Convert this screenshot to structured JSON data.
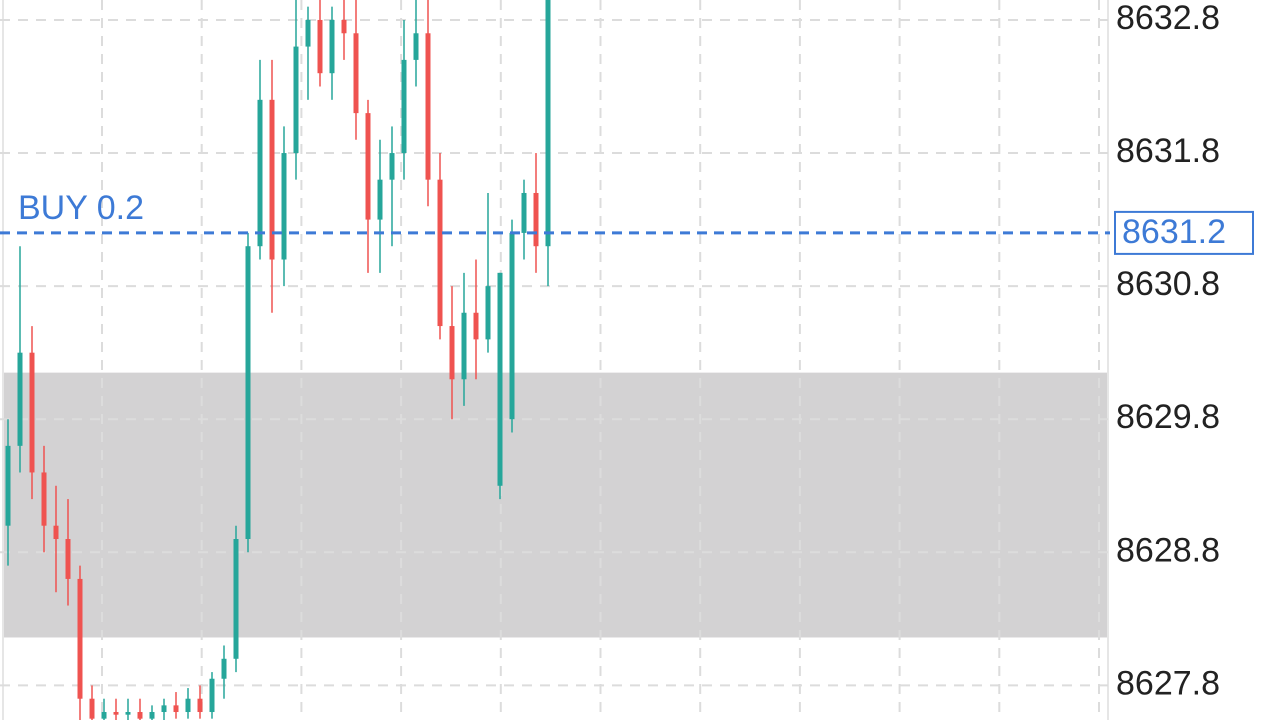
{
  "chart_data": {
    "type": "candlestick",
    "ylim": [
      8627.54,
      8632.95
    ],
    "yticks": [
      8627.8,
      8628.8,
      8629.8,
      8630.8,
      8631.8,
      8632.8
    ],
    "grid": true,
    "up_color": "#26a69a",
    "down_color": "#ef5350",
    "open": [
      8629.0,
      8629.6,
      8630.3,
      8629.4,
      8629.0,
      8628.9,
      8628.6,
      8627.7,
      8627.55,
      8627.6,
      8627.58,
      8627.6,
      8627.55,
      8627.6,
      8627.65,
      8627.6,
      8627.7,
      8627.6,
      8627.85,
      8628.0,
      8628.9,
      8631.1,
      8632.2,
      8631.0,
      8631.8,
      8632.6,
      8632.8,
      8632.4,
      8632.8,
      8632.7,
      8632.1,
      8631.3,
      8631.6,
      8631.8,
      8632.5,
      8632.7,
      8631.6,
      8630.5,
      8630.1,
      8630.6,
      8630.4,
      8629.3,
      8629.8,
      8631.2,
      8631.5,
      8631.1
    ],
    "high": [
      8629.8,
      8631.1,
      8630.5,
      8629.6,
      8629.3,
      8629.2,
      8628.7,
      8627.8,
      8627.7,
      8627.7,
      8627.7,
      8627.7,
      8627.65,
      8627.7,
      8627.75,
      8627.78,
      8627.8,
      8627.9,
      8628.1,
      8629.0,
      8631.2,
      8632.5,
      8632.5,
      8632.0,
      8632.95,
      8632.9,
      8632.95,
      8632.9,
      8632.95,
      8632.95,
      8632.2,
      8631.9,
      8632.0,
      8632.8,
      8632.95,
      8632.95,
      8631.8,
      8630.8,
      8630.9,
      8631.0,
      8631.5,
      8630.9,
      8631.3,
      8631.6,
      8631.8,
      8632.95
    ],
    "low": [
      8628.7,
      8629.4,
      8629.2,
      8628.8,
      8628.5,
      8628.4,
      8627.5,
      8627.5,
      8627.5,
      8627.5,
      8627.5,
      8627.52,
      8627.5,
      8627.52,
      8627.55,
      8627.55,
      8627.55,
      8627.55,
      8627.7,
      8627.9,
      8628.8,
      8631.0,
      8630.6,
      8630.8,
      8631.6,
      8632.2,
      8632.3,
      8632.2,
      8632.5,
      8631.9,
      8630.9,
      8630.9,
      8631.1,
      8631.6,
      8632.3,
      8631.4,
      8630.4,
      8629.8,
      8629.9,
      8630.1,
      8630.3,
      8629.2,
      8629.7,
      8631.0,
      8630.9,
      8630.8
    ],
    "close": [
      8629.6,
      8630.3,
      8629.4,
      8629.0,
      8628.9,
      8628.6,
      8627.7,
      8627.55,
      8627.6,
      8627.58,
      8627.6,
      8627.55,
      8627.6,
      8627.65,
      8627.6,
      8627.7,
      8627.6,
      8627.85,
      8628.0,
      8628.9,
      8631.1,
      8632.2,
      8631.0,
      8631.8,
      8632.6,
      8632.8,
      8632.4,
      8632.8,
      8632.7,
      8632.1,
      8631.3,
      8631.6,
      8631.8,
      8632.5,
      8632.7,
      8631.6,
      8630.5,
      8630.1,
      8630.6,
      8630.4,
      8630.8,
      8630.9,
      8631.2,
      8631.5,
      8631.1,
      8632.95
    ],
    "zone": {
      "low": 8628.16,
      "high": 8630.15,
      "color": "#d3d2d3"
    },
    "order_line": {
      "label": "BUY 0.2",
      "value": 8631.2,
      "color": "#3d7ad6"
    }
  }
}
